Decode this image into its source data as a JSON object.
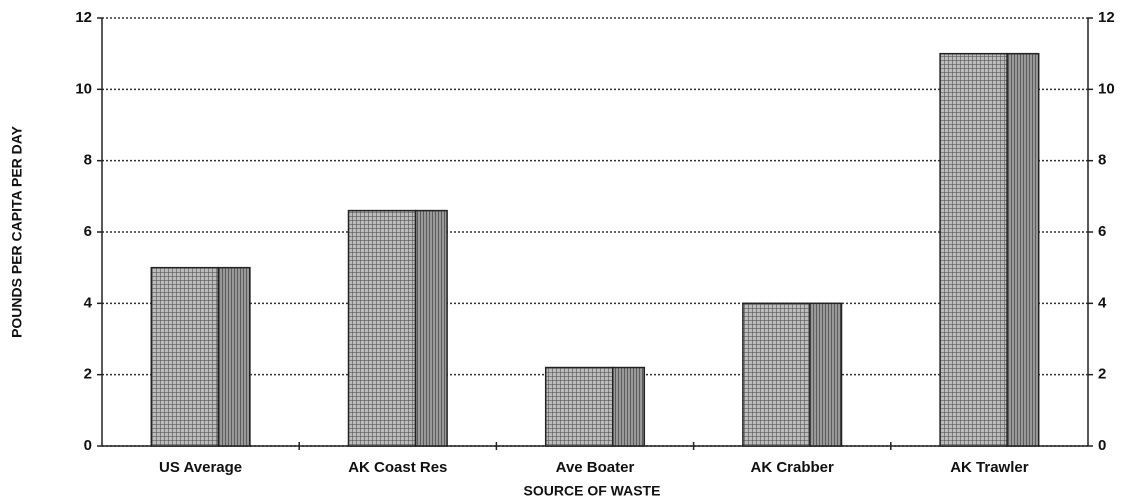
{
  "chart_data": {
    "type": "bar",
    "categories": [
      "US Average",
      "AK Coast Res",
      "Ave Boater",
      "AK Crabber",
      "AK Trawler"
    ],
    "values": [
      5,
      6.6,
      2.2,
      4,
      11
    ],
    "color": "#777777",
    "x_label": "SOURCE OF WASTE",
    "y_label": "POUNDS PER CAPITA PER DAY",
    "ylim": [
      0,
      12
    ],
    "yticks": [
      0,
      2,
      4,
      6,
      8,
      10,
      12
    ],
    "grid": true
  }
}
